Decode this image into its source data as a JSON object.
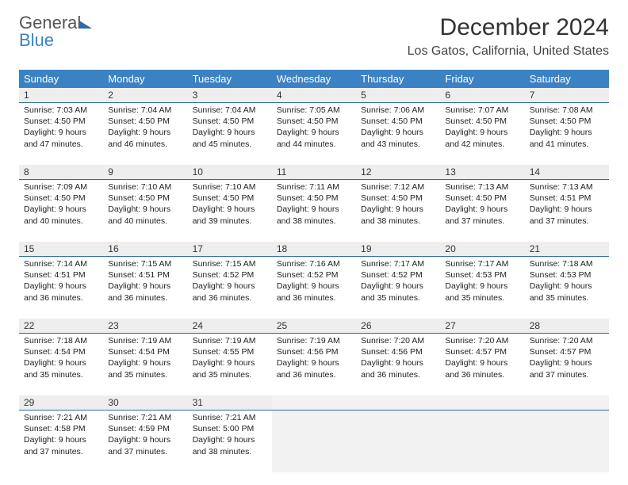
{
  "logo": {
    "top": "General",
    "bottom": "Blue"
  },
  "title": "December 2024",
  "location": "Los Gatos, California, United States",
  "colors": {
    "header_bg": "#3b82c4",
    "header_text": "#ffffff",
    "rule": "#2f6aa8",
    "num_bg": "#eeeeee",
    "empty_bg": "#f2f2f2",
    "text": "#222222"
  },
  "weekdays": [
    "Sunday",
    "Monday",
    "Tuesday",
    "Wednesday",
    "Thursday",
    "Friday",
    "Saturday"
  ],
  "weeks": [
    [
      {
        "n": "1",
        "sr": "7:03 AM",
        "ss": "4:50 PM",
        "dlh": "9",
        "dlm": "47"
      },
      {
        "n": "2",
        "sr": "7:04 AM",
        "ss": "4:50 PM",
        "dlh": "9",
        "dlm": "46"
      },
      {
        "n": "3",
        "sr": "7:04 AM",
        "ss": "4:50 PM",
        "dlh": "9",
        "dlm": "45"
      },
      {
        "n": "4",
        "sr": "7:05 AM",
        "ss": "4:50 PM",
        "dlh": "9",
        "dlm": "44"
      },
      {
        "n": "5",
        "sr": "7:06 AM",
        "ss": "4:50 PM",
        "dlh": "9",
        "dlm": "43"
      },
      {
        "n": "6",
        "sr": "7:07 AM",
        "ss": "4:50 PM",
        "dlh": "9",
        "dlm": "42"
      },
      {
        "n": "7",
        "sr": "7:08 AM",
        "ss": "4:50 PM",
        "dlh": "9",
        "dlm": "41"
      }
    ],
    [
      {
        "n": "8",
        "sr": "7:09 AM",
        "ss": "4:50 PM",
        "dlh": "9",
        "dlm": "40"
      },
      {
        "n": "9",
        "sr": "7:10 AM",
        "ss": "4:50 PM",
        "dlh": "9",
        "dlm": "40"
      },
      {
        "n": "10",
        "sr": "7:10 AM",
        "ss": "4:50 PM",
        "dlh": "9",
        "dlm": "39"
      },
      {
        "n": "11",
        "sr": "7:11 AM",
        "ss": "4:50 PM",
        "dlh": "9",
        "dlm": "38"
      },
      {
        "n": "12",
        "sr": "7:12 AM",
        "ss": "4:50 PM",
        "dlh": "9",
        "dlm": "38"
      },
      {
        "n": "13",
        "sr": "7:13 AM",
        "ss": "4:50 PM",
        "dlh": "9",
        "dlm": "37"
      },
      {
        "n": "14",
        "sr": "7:13 AM",
        "ss": "4:51 PM",
        "dlh": "9",
        "dlm": "37"
      }
    ],
    [
      {
        "n": "15",
        "sr": "7:14 AM",
        "ss": "4:51 PM",
        "dlh": "9",
        "dlm": "36"
      },
      {
        "n": "16",
        "sr": "7:15 AM",
        "ss": "4:51 PM",
        "dlh": "9",
        "dlm": "36"
      },
      {
        "n": "17",
        "sr": "7:15 AM",
        "ss": "4:52 PM",
        "dlh": "9",
        "dlm": "36"
      },
      {
        "n": "18",
        "sr": "7:16 AM",
        "ss": "4:52 PM",
        "dlh": "9",
        "dlm": "36"
      },
      {
        "n": "19",
        "sr": "7:17 AM",
        "ss": "4:52 PM",
        "dlh": "9",
        "dlm": "35"
      },
      {
        "n": "20",
        "sr": "7:17 AM",
        "ss": "4:53 PM",
        "dlh": "9",
        "dlm": "35"
      },
      {
        "n": "21",
        "sr": "7:18 AM",
        "ss": "4:53 PM",
        "dlh": "9",
        "dlm": "35"
      }
    ],
    [
      {
        "n": "22",
        "sr": "7:18 AM",
        "ss": "4:54 PM",
        "dlh": "9",
        "dlm": "35"
      },
      {
        "n": "23",
        "sr": "7:19 AM",
        "ss": "4:54 PM",
        "dlh": "9",
        "dlm": "35"
      },
      {
        "n": "24",
        "sr": "7:19 AM",
        "ss": "4:55 PM",
        "dlh": "9",
        "dlm": "35"
      },
      {
        "n": "25",
        "sr": "7:19 AM",
        "ss": "4:56 PM",
        "dlh": "9",
        "dlm": "36"
      },
      {
        "n": "26",
        "sr": "7:20 AM",
        "ss": "4:56 PM",
        "dlh": "9",
        "dlm": "36"
      },
      {
        "n": "27",
        "sr": "7:20 AM",
        "ss": "4:57 PM",
        "dlh": "9",
        "dlm": "36"
      },
      {
        "n": "28",
        "sr": "7:20 AM",
        "ss": "4:57 PM",
        "dlh": "9",
        "dlm": "37"
      }
    ],
    [
      {
        "n": "29",
        "sr": "7:21 AM",
        "ss": "4:58 PM",
        "dlh": "9",
        "dlm": "37"
      },
      {
        "n": "30",
        "sr": "7:21 AM",
        "ss": "4:59 PM",
        "dlh": "9",
        "dlm": "37"
      },
      {
        "n": "31",
        "sr": "7:21 AM",
        "ss": "5:00 PM",
        "dlh": "9",
        "dlm": "38"
      },
      null,
      null,
      null,
      null
    ]
  ]
}
